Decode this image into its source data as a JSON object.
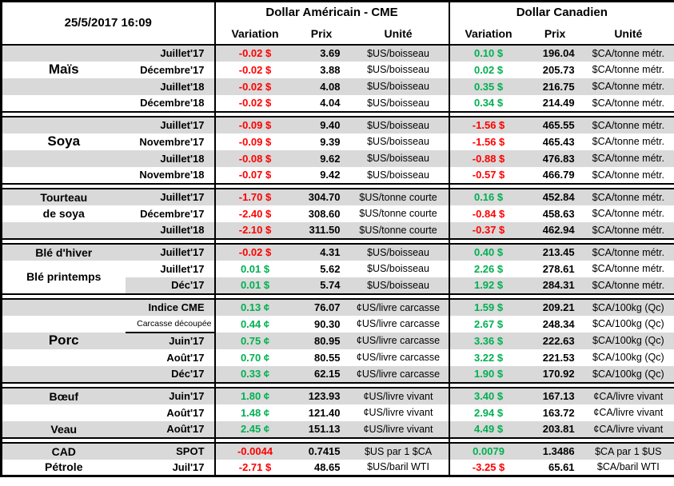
{
  "meta": {
    "timestamp": "25/5/2017 16:09"
  },
  "header": {
    "us_group": "Dollar Américain - CME",
    "ca_group": "Dollar Canadien",
    "variation": "Variation",
    "prix": "Prix",
    "unite": "Unité"
  },
  "colors": {
    "positive": "#00B050",
    "negative": "#FF0000",
    "stripe": "#D9D9D9",
    "border": "#000000"
  },
  "sections": [
    {
      "name": "mais",
      "rows": [
        {
          "month": "Juillet'17",
          "us_var": "-0.02 $",
          "us_dir": "neg",
          "us_prix": "3.69",
          "us_unit": "$US/boisseau",
          "ca_var": "0.10 $",
          "ca_dir": "pos",
          "ca_prix": "196.04",
          "ca_unit": "$CA/tonne métr."
        },
        {
          "cat": "Maïs",
          "cat_big": true,
          "month": "Décembre'17",
          "us_var": "-0.02 $",
          "us_dir": "neg",
          "us_prix": "3.88",
          "us_unit": "$US/boisseau",
          "ca_var": "0.02 $",
          "ca_dir": "pos",
          "ca_prix": "205.73",
          "ca_unit": "$CA/tonne métr."
        },
        {
          "month": "Juillet'18",
          "us_var": "-0.02 $",
          "us_dir": "neg",
          "us_prix": "4.08",
          "us_unit": "$US/boisseau",
          "ca_var": "0.35 $",
          "ca_dir": "pos",
          "ca_prix": "216.75",
          "ca_unit": "$CA/tonne métr."
        },
        {
          "month": "Décembre'18",
          "us_var": "-0.02 $",
          "us_dir": "neg",
          "us_prix": "4.04",
          "us_unit": "$US/boisseau",
          "ca_var": "0.34 $",
          "ca_dir": "pos",
          "ca_prix": "214.49",
          "ca_unit": "$CA/tonne métr."
        }
      ]
    },
    {
      "name": "soya",
      "rows": [
        {
          "month": "Juillet'17",
          "us_var": "-0.09 $",
          "us_dir": "neg",
          "us_prix": "9.40",
          "us_unit": "$US/boisseau",
          "ca_var": "-1.56 $",
          "ca_dir": "neg",
          "ca_prix": "465.55",
          "ca_unit": "$CA/tonne métr."
        },
        {
          "cat": "Soya",
          "cat_big": true,
          "month": "Novembre'17",
          "us_var": "-0.09 $",
          "us_dir": "neg",
          "us_prix": "9.39",
          "us_unit": "$US/boisseau",
          "ca_var": "-1.56 $",
          "ca_dir": "neg",
          "ca_prix": "465.43",
          "ca_unit": "$CA/tonne métr."
        },
        {
          "month": "Juillet'18",
          "us_var": "-0.08 $",
          "us_dir": "neg",
          "us_prix": "9.62",
          "us_unit": "$US/boisseau",
          "ca_var": "-0.88 $",
          "ca_dir": "neg",
          "ca_prix": "476.83",
          "ca_unit": "$CA/tonne métr."
        },
        {
          "month": "Novembre'18",
          "us_var": "-0.07 $",
          "us_dir": "neg",
          "us_prix": "9.42",
          "us_unit": "$US/boisseau",
          "ca_var": "-0.57 $",
          "ca_dir": "neg",
          "ca_prix": "466.79",
          "ca_unit": "$CA/tonne métr."
        }
      ]
    },
    {
      "name": "tourteau-de-soya",
      "rows": [
        {
          "cat": "Tourteau",
          "month": "Juillet'17",
          "us_var": "-1.70 $",
          "us_dir": "neg",
          "us_prix": "304.70",
          "us_unit": "$US/tonne courte",
          "ca_var": "0.16 $",
          "ca_dir": "pos",
          "ca_prix": "452.84",
          "ca_unit": "$CA/tonne métr."
        },
        {
          "cat": "de soya",
          "month": "Décembre'17",
          "us_var": "-2.40 $",
          "us_dir": "neg",
          "us_prix": "308.60",
          "us_unit": "$US/tonne courte",
          "ca_var": "-0.84 $",
          "ca_dir": "neg",
          "ca_prix": "458.63",
          "ca_unit": "$CA/tonne métr."
        },
        {
          "month": "Juillet'18",
          "us_var": "-2.10 $",
          "us_dir": "neg",
          "us_prix": "311.50",
          "us_unit": "$US/tonne courte",
          "ca_var": "-0.37 $",
          "ca_dir": "neg",
          "ca_prix": "462.94",
          "ca_unit": "$CA/tonne métr."
        }
      ]
    },
    {
      "name": "ble",
      "rows": [
        {
          "cat": "Blé d'hiver",
          "month": "Juillet'17",
          "us_var": "-0.02 $",
          "us_dir": "neg",
          "us_prix": "4.31",
          "us_unit": "$US/boisseau",
          "ca_var": "0.40 $",
          "ca_dir": "pos",
          "ca_prix": "213.45",
          "ca_unit": "$CA/tonne métr."
        },
        {
          "cat": "Blé printemps",
          "cat_span": 2,
          "cat_white": true,
          "month": "Juillet'17",
          "us_var": "0.01 $",
          "us_dir": "pos",
          "us_prix": "5.62",
          "us_unit": "$US/boisseau",
          "ca_var": "2.26 $",
          "ca_dir": "pos",
          "ca_prix": "278.61",
          "ca_unit": "$CA/tonne métr."
        },
        {
          "cat_skip": true,
          "month": "Déc'17",
          "us_var": "0.01 $",
          "us_dir": "pos",
          "us_prix": "5.74",
          "us_unit": "$US/boisseau",
          "ca_var": "1.92 $",
          "ca_dir": "pos",
          "ca_prix": "284.31",
          "ca_unit": "$CA/tonne métr."
        }
      ]
    },
    {
      "name": "porc",
      "rows": [
        {
          "month": "Indice CME",
          "us_var": "0.13 ¢",
          "us_dir": "pos",
          "us_prix": "76.07",
          "us_unit": "¢US/livre carcasse",
          "ca_var": "1.59 $",
          "ca_dir": "pos",
          "ca_prix": "209.21",
          "ca_unit": "$CA/100kg (Qc)"
        },
        {
          "month": "Carcasse découpée",
          "month_small": true,
          "month_box": true,
          "us_var": "0.44 ¢",
          "us_dir": "pos",
          "us_prix": "90.30",
          "us_unit": "¢US/livre carcasse",
          "ca_var": "2.67 $",
          "ca_dir": "pos",
          "ca_prix": "248.34",
          "ca_unit": "$CA/100kg (Qc)"
        },
        {
          "cat": "Porc",
          "cat_big": true,
          "month": "Juin'17",
          "us_var": "0.75 ¢",
          "us_dir": "pos",
          "us_prix": "80.95",
          "us_unit": "¢US/livre carcasse",
          "ca_var": "3.36 $",
          "ca_dir": "pos",
          "ca_prix": "222.63",
          "ca_unit": "$CA/100kg (Qc)"
        },
        {
          "month": "Août'17",
          "us_var": "0.70 ¢",
          "us_dir": "pos",
          "us_prix": "80.55",
          "us_unit": "¢US/livre carcasse",
          "ca_var": "3.22 $",
          "ca_dir": "pos",
          "ca_prix": "221.53",
          "ca_unit": "$CA/100kg (Qc)"
        },
        {
          "month": "Déc'17",
          "us_var": "0.33 ¢",
          "us_dir": "pos",
          "us_prix": "62.15",
          "us_unit": "¢US/livre carcasse",
          "ca_var": "1.90 $",
          "ca_dir": "pos",
          "ca_prix": "170.92",
          "ca_unit": "$CA/100kg (Qc)"
        }
      ]
    },
    {
      "name": "boeuf-veau",
      "rows": [
        {
          "cat": "Bœuf",
          "month": "Juin'17",
          "us_var": "1.80 ¢",
          "us_dir": "pos",
          "us_prix": "123.93",
          "us_unit": "¢US/livre vivant",
          "ca_var": "3.40 $",
          "ca_dir": "pos",
          "ca_prix": "167.13",
          "ca_unit": "¢CA/livre vivant"
        },
        {
          "month": "Août'17",
          "us_var": "1.48 ¢",
          "us_dir": "pos",
          "us_prix": "121.40",
          "us_unit": "¢US/livre vivant",
          "ca_var": "2.94 $",
          "ca_dir": "pos",
          "ca_prix": "163.72",
          "ca_unit": "¢CA/livre vivant"
        },
        {
          "cat": "Veau",
          "month": "Août'17",
          "us_var": "2.45 ¢",
          "us_dir": "pos",
          "us_prix": "151.13",
          "us_unit": "¢US/livre vivant",
          "ca_var": "4.49 $",
          "ca_dir": "pos",
          "ca_prix": "203.81",
          "ca_unit": "¢CA/livre vivant"
        }
      ]
    },
    {
      "name": "cad-petrole",
      "rows": [
        {
          "cat": "CAD",
          "month": "SPOT",
          "us_var": "-0.0044",
          "us_dir": "neg",
          "us_prix": "0.7415",
          "us_unit": "$US par 1 $CA",
          "ca_var": "0.0079",
          "ca_dir": "pos",
          "ca_prix": "1.3486",
          "ca_unit": "$CA par 1 $US"
        },
        {
          "cat": "Pétrole",
          "month": "Juil'17",
          "us_var": "-2.71 $",
          "us_dir": "neg",
          "us_prix": "48.65",
          "us_unit": "$US/baril WTI",
          "ca_var": "-3.25 $",
          "ca_dir": "neg",
          "ca_prix": "65.61",
          "ca_unit": "$CA/baril WTI"
        }
      ]
    }
  ]
}
